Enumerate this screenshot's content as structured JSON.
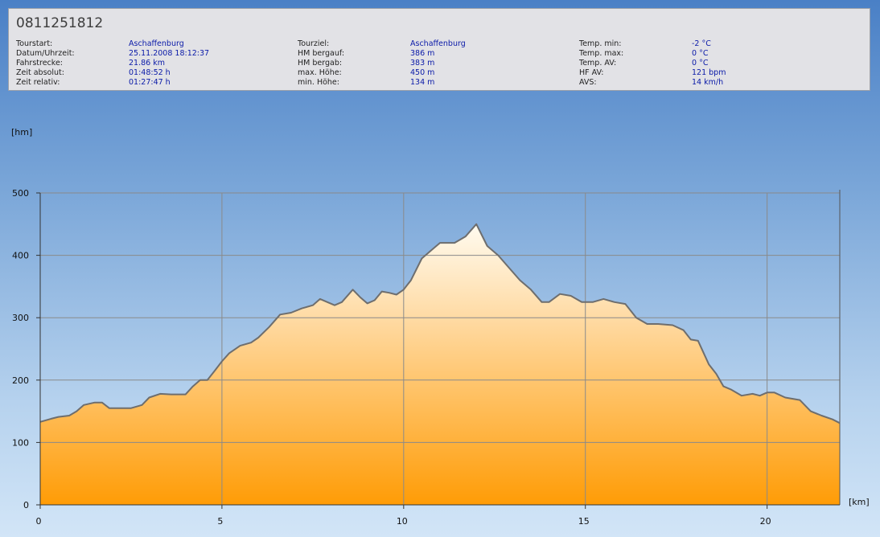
{
  "header": {
    "title": "0811251812",
    "columns": [
      [
        {
          "label": "Tourstart:",
          "value": "Aschaffenburg"
        },
        {
          "label": "Datum/Uhrzeit:",
          "value": "25.11.2008 18:12:37"
        },
        {
          "label": "Fahrstrecke:",
          "value": "21.86 km"
        },
        {
          "label": "Zeit absolut:",
          "value": "01:48:52 h"
        },
        {
          "label": "Zeit relativ:",
          "value": "01:27:47 h"
        }
      ],
      [
        {
          "label": "Tourziel:",
          "value": "Aschaffenburg"
        },
        {
          "label": "HM bergauf:",
          "value": "386 m"
        },
        {
          "label": "HM bergab:",
          "value": "383 m"
        },
        {
          "label": "max. Höhe:",
          "value": "450 m"
        },
        {
          "label": "min. Höhe:",
          "value": "134 m"
        }
      ],
      [
        {
          "label": "Temp. min:",
          "value": "-2 °C"
        },
        {
          "label": "Temp. max:",
          "value": "0 °C"
        },
        {
          "label": "Temp. AV:",
          "value": "0 °C"
        },
        {
          "label": "HF AV:",
          "value": "121 bpm"
        },
        {
          "label": "AVS:",
          "value": "14 km/h"
        }
      ]
    ]
  },
  "chart_data": {
    "type": "area",
    "ylabel": "[hm]",
    "xlabel": "[km]",
    "xlim": [
      0,
      22
    ],
    "ylim": [
      0,
      500
    ],
    "xticks": [
      0,
      5,
      10,
      15,
      20
    ],
    "yticks": [
      0,
      100,
      200,
      300,
      400,
      500
    ],
    "grid": true,
    "colors": {
      "fill_top": "#fffbf0",
      "fill_bottom": "#ff9c06",
      "line": "#6e6e6e",
      "grid": "#8a8a8a"
    },
    "x": [
      0,
      0.3,
      0.5,
      0.8,
      1.0,
      1.2,
      1.5,
      1.7,
      1.9,
      2.2,
      2.5,
      2.8,
      3.0,
      3.3,
      3.6,
      4.0,
      4.2,
      4.4,
      4.6,
      4.8,
      5.0,
      5.2,
      5.5,
      5.8,
      6.0,
      6.3,
      6.6,
      6.9,
      7.2,
      7.5,
      7.7,
      7.9,
      8.1,
      8.3,
      8.6,
      8.8,
      9.0,
      9.2,
      9.4,
      9.6,
      9.8,
      10.0,
      10.2,
      10.5,
      10.8,
      11.0,
      11.4,
      11.7,
      12.0,
      12.3,
      12.6,
      12.9,
      13.2,
      13.5,
      13.8,
      14.0,
      14.3,
      14.6,
      14.9,
      15.2,
      15.5,
      15.8,
      16.1,
      16.4,
      16.7,
      17.0,
      17.4,
      17.7,
      17.9,
      18.1,
      18.4,
      18.6,
      18.8,
      19.0,
      19.3,
      19.6,
      19.8,
      20.0,
      20.2,
      20.5,
      20.9,
      21.2,
      21.5,
      21.8,
      22.0
    ],
    "y": [
      133,
      138,
      141,
      143,
      150,
      160,
      164,
      164,
      155,
      155,
      155,
      160,
      172,
      178,
      177,
      177,
      190,
      200,
      200,
      215,
      230,
      243,
      255,
      260,
      268,
      285,
      305,
      308,
      315,
      320,
      330,
      325,
      320,
      325,
      345,
      333,
      323,
      328,
      342,
      340,
      337,
      345,
      360,
      395,
      410,
      420,
      420,
      430,
      450,
      415,
      400,
      380,
      360,
      345,
      325,
      325,
      338,
      335,
      325,
      325,
      330,
      325,
      322,
      300,
      290,
      290,
      288,
      280,
      265,
      263,
      225,
      210,
      190,
      185,
      175,
      178,
      175,
      180,
      180,
      172,
      168,
      150,
      143,
      137,
      131
    ]
  }
}
